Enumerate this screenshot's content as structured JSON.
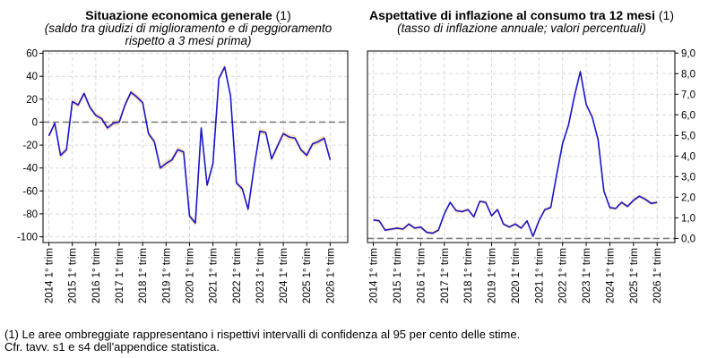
{
  "charts": {
    "left": {
      "title": "Situazione economica generale",
      "title_note": " (1)",
      "subtitle_line1": "(saldo tra giudizi di miglioramento e di peggioramento",
      "subtitle_line2": "rispetto a 3 mesi prima)"
    },
    "right": {
      "title": "Aspettative di inflazione al consumo tra 12 mesi",
      "title_note": " (1)",
      "subtitle_line1": "(tasso di inflazione annuale; valori percentuali)"
    }
  },
  "footnotes": {
    "note1": "(1) Le aree ombreggiate rappresentano i rispettivi intervalli di confidenza al 95 per cento delle stime.",
    "note2": "Cfr. tavv. s1 e s4 dell'appendice statistica."
  },
  "colors": {
    "line": "#1a14c8",
    "band": "#f5c78a",
    "zero": "#808080",
    "grid": "#d9d9d9"
  },
  "chart_data": [
    {
      "type": "line",
      "title": "Situazione economica generale (1)",
      "subtitle": "(saldo tra giudizi di miglioramento e di peggioramento rispetto a 3 mesi prima)",
      "xlabel": "",
      "ylabel": "",
      "xlim": [
        2013.75,
        2026.75
      ],
      "ylim": [
        -105,
        62
      ],
      "yticks": [
        60,
        40,
        20,
        0,
        -20,
        -40,
        -60,
        -80,
        -100
      ],
      "ytick_labels": [
        "60",
        "40",
        "20",
        "0",
        "-20",
        "-40",
        "-60",
        "-80",
        "-100"
      ],
      "y_axis_side": "left",
      "xticks": [
        2014,
        2015,
        2016,
        2017,
        2018,
        2019,
        2020,
        2021,
        2022,
        2023,
        2024,
        2025,
        2026
      ],
      "xtick_labels": [
        "2014 1° trim",
        "2015 1° trim",
        "2016 1° trim",
        "2017 1° trim",
        "2018 1° trim",
        "2019 1° trim",
        "2020 1° trim",
        "2021 1° trim",
        "2022 1° trim",
        "2023 1° trim",
        "2024 1° trim",
        "2025 1° trim",
        "2026 1° trim"
      ],
      "grid": true,
      "reference_line": 0,
      "confidence_band_halfwidth": 2.5,
      "series": [
        {
          "name": "Situazione economica generale",
          "x": [
            2014.0,
            2014.25,
            2014.5,
            2014.75,
            2015.0,
            2015.25,
            2015.5,
            2015.75,
            2016.0,
            2016.25,
            2016.5,
            2016.75,
            2017.0,
            2017.25,
            2017.5,
            2017.75,
            2018.0,
            2018.25,
            2018.5,
            2018.75,
            2019.0,
            2019.25,
            2019.5,
            2019.75,
            2020.0,
            2020.25,
            2020.5,
            2020.75,
            2021.0,
            2021.25,
            2021.5,
            2021.75,
            2022.0,
            2022.25,
            2022.5,
            2022.75,
            2023.0,
            2023.25,
            2023.5,
            2023.75,
            2024.0,
            2024.25,
            2024.5,
            2024.75,
            2025.0,
            2025.25,
            2025.5,
            2025.75,
            2026.0
          ],
          "values": [
            -12,
            -1,
            -29,
            -24,
            18,
            15,
            25,
            13,
            6,
            3,
            -5,
            -1,
            0,
            15,
            26,
            22,
            17,
            -10,
            -17,
            -40,
            -36,
            -33,
            -24,
            -26,
            -82,
            -88,
            -5,
            -55,
            -36,
            38,
            48,
            23,
            -53,
            -58,
            -76,
            -40,
            -8,
            -9,
            -32,
            -21,
            -10,
            -13,
            -14,
            -24,
            -29,
            -19,
            -17,
            -14,
            -33
          ]
        }
      ]
    },
    {
      "type": "line",
      "title": "Aspettative di inflazione al consumo tra 12 mesi (1)",
      "subtitle": "(tasso di inflazione annuale; valori percentuali)",
      "xlabel": "",
      "ylabel": "",
      "xlim": [
        2013.75,
        2026.75
      ],
      "ylim": [
        -0.2,
        9.1
      ],
      "yticks": [
        9,
        8,
        7,
        6,
        5,
        4,
        3,
        2,
        1,
        0
      ],
      "ytick_labels": [
        "9,0",
        "8,0",
        "7,0",
        "6,0",
        "5,0",
        "4,0",
        "3,0",
        "2,0",
        "1,0",
        "0,0"
      ],
      "y_axis_side": "right",
      "xticks": [
        2014,
        2015,
        2016,
        2017,
        2018,
        2019,
        2020,
        2021,
        2022,
        2023,
        2024,
        2025,
        2026
      ],
      "xtick_labels": [
        "2014 1° trim",
        "2015 1° trim",
        "2016 1° trim",
        "2017 1° trim",
        "2018 1° trim",
        "2019 1° trim",
        "2020 1° trim",
        "2021 1° trim",
        "2022 1° trim",
        "2023 1° trim",
        "2024 1° trim",
        "2025 1° trim",
        "2026 1° trim"
      ],
      "grid": true,
      "reference_line": 0,
      "confidence_band_halfwidth": 0.08,
      "series": [
        {
          "name": "Aspettative di inflazione al consumo tra 12 mesi",
          "x": [
            2014.0,
            2014.25,
            2014.5,
            2014.75,
            2015.0,
            2015.25,
            2015.5,
            2015.75,
            2016.0,
            2016.25,
            2016.5,
            2016.75,
            2017.0,
            2017.25,
            2017.5,
            2017.75,
            2018.0,
            2018.25,
            2018.5,
            2018.75,
            2019.0,
            2019.25,
            2019.5,
            2019.75,
            2020.0,
            2020.25,
            2020.5,
            2020.75,
            2021.0,
            2021.25,
            2021.5,
            2021.75,
            2022.0,
            2022.25,
            2022.5,
            2022.75,
            2023.0,
            2023.25,
            2023.5,
            2023.75,
            2024.0,
            2024.25,
            2024.5,
            2024.75,
            2025.0,
            2025.25,
            2025.5,
            2025.75,
            2026.0
          ],
          "values": [
            0.9,
            0.85,
            0.4,
            0.45,
            0.5,
            0.45,
            0.7,
            0.5,
            0.55,
            0.3,
            0.25,
            0.4,
            1.2,
            1.75,
            1.35,
            1.3,
            1.4,
            1.05,
            1.8,
            1.75,
            1.1,
            1.4,
            0.7,
            0.55,
            0.7,
            0.5,
            0.85,
            0.1,
            0.85,
            1.4,
            1.5,
            3.1,
            4.6,
            5.5,
            6.9,
            8.1,
            6.5,
            5.9,
            4.8,
            2.3,
            1.5,
            1.45,
            1.75,
            1.55,
            1.85,
            2.05,
            1.9,
            1.7,
            1.75
          ]
        }
      ]
    }
  ]
}
